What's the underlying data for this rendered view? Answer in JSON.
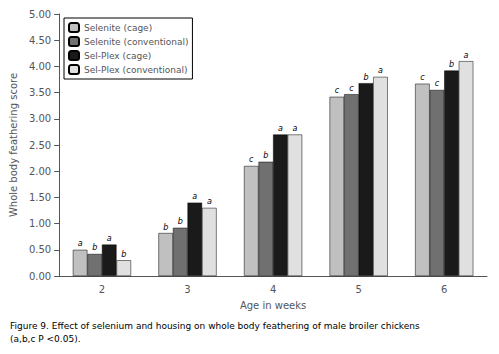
{
  "chart_data": {
    "type": "bar",
    "categories": [
      "2",
      "3",
      "4",
      "5",
      "6"
    ],
    "series": [
      {
        "name": "Selenite (cage)",
        "color": "#c0c0c0",
        "values": [
          0.5,
          0.82,
          2.1,
          3.42,
          3.67
        ],
        "annotations": [
          "a",
          "b",
          "c",
          "c",
          "c"
        ]
      },
      {
        "name": "Selenite (conventional)",
        "color": "#707070",
        "values": [
          0.42,
          0.92,
          2.18,
          3.47,
          3.55
        ],
        "annotations": [
          "b",
          "b",
          "b",
          "c",
          "c"
        ]
      },
      {
        "name": "Sel-Plex (cage)",
        "color": "#1a1a1a",
        "values": [
          0.6,
          1.4,
          2.7,
          3.68,
          3.92
        ],
        "annotations": [
          "a",
          "a",
          "a",
          "b",
          "b"
        ]
      },
      {
        "name": "Sel-Plex (conventional)",
        "color": "#e0e0e0",
        "values": [
          0.3,
          1.3,
          2.7,
          3.8,
          4.1
        ],
        "annotations": [
          "b",
          "a",
          "a",
          "a",
          "a"
        ]
      }
    ],
    "xlabel": "Age in weeks",
    "ylabel": "Whole body feathering score",
    "ylim": [
      0.0,
      5.0
    ],
    "yticks": [
      {
        "value": 0.0,
        "label": "0.00"
      },
      {
        "value": 0.5,
        "label": "0.50"
      },
      {
        "value": 1.0,
        "label": "1.00"
      },
      {
        "value": 1.5,
        "label": "1.50"
      },
      {
        "value": 2.0,
        "label": "2.00"
      },
      {
        "value": 2.5,
        "label": "2.50"
      },
      {
        "value": 3.0,
        "label": "3.00"
      },
      {
        "value": 3.5,
        "label": "3.50"
      },
      {
        "value": 4.0,
        "label": "4.00"
      },
      {
        "value": 4.5,
        "label": "4.50"
      },
      {
        "value": 5.0,
        "label": "5.00"
      }
    ],
    "caption": [
      "Figure 9. Effect of selenium and housing on whole body feathering of male broiler chickens",
      "(a,b,c P <0.05)."
    ],
    "legend": "upper left",
    "grid": false
  }
}
